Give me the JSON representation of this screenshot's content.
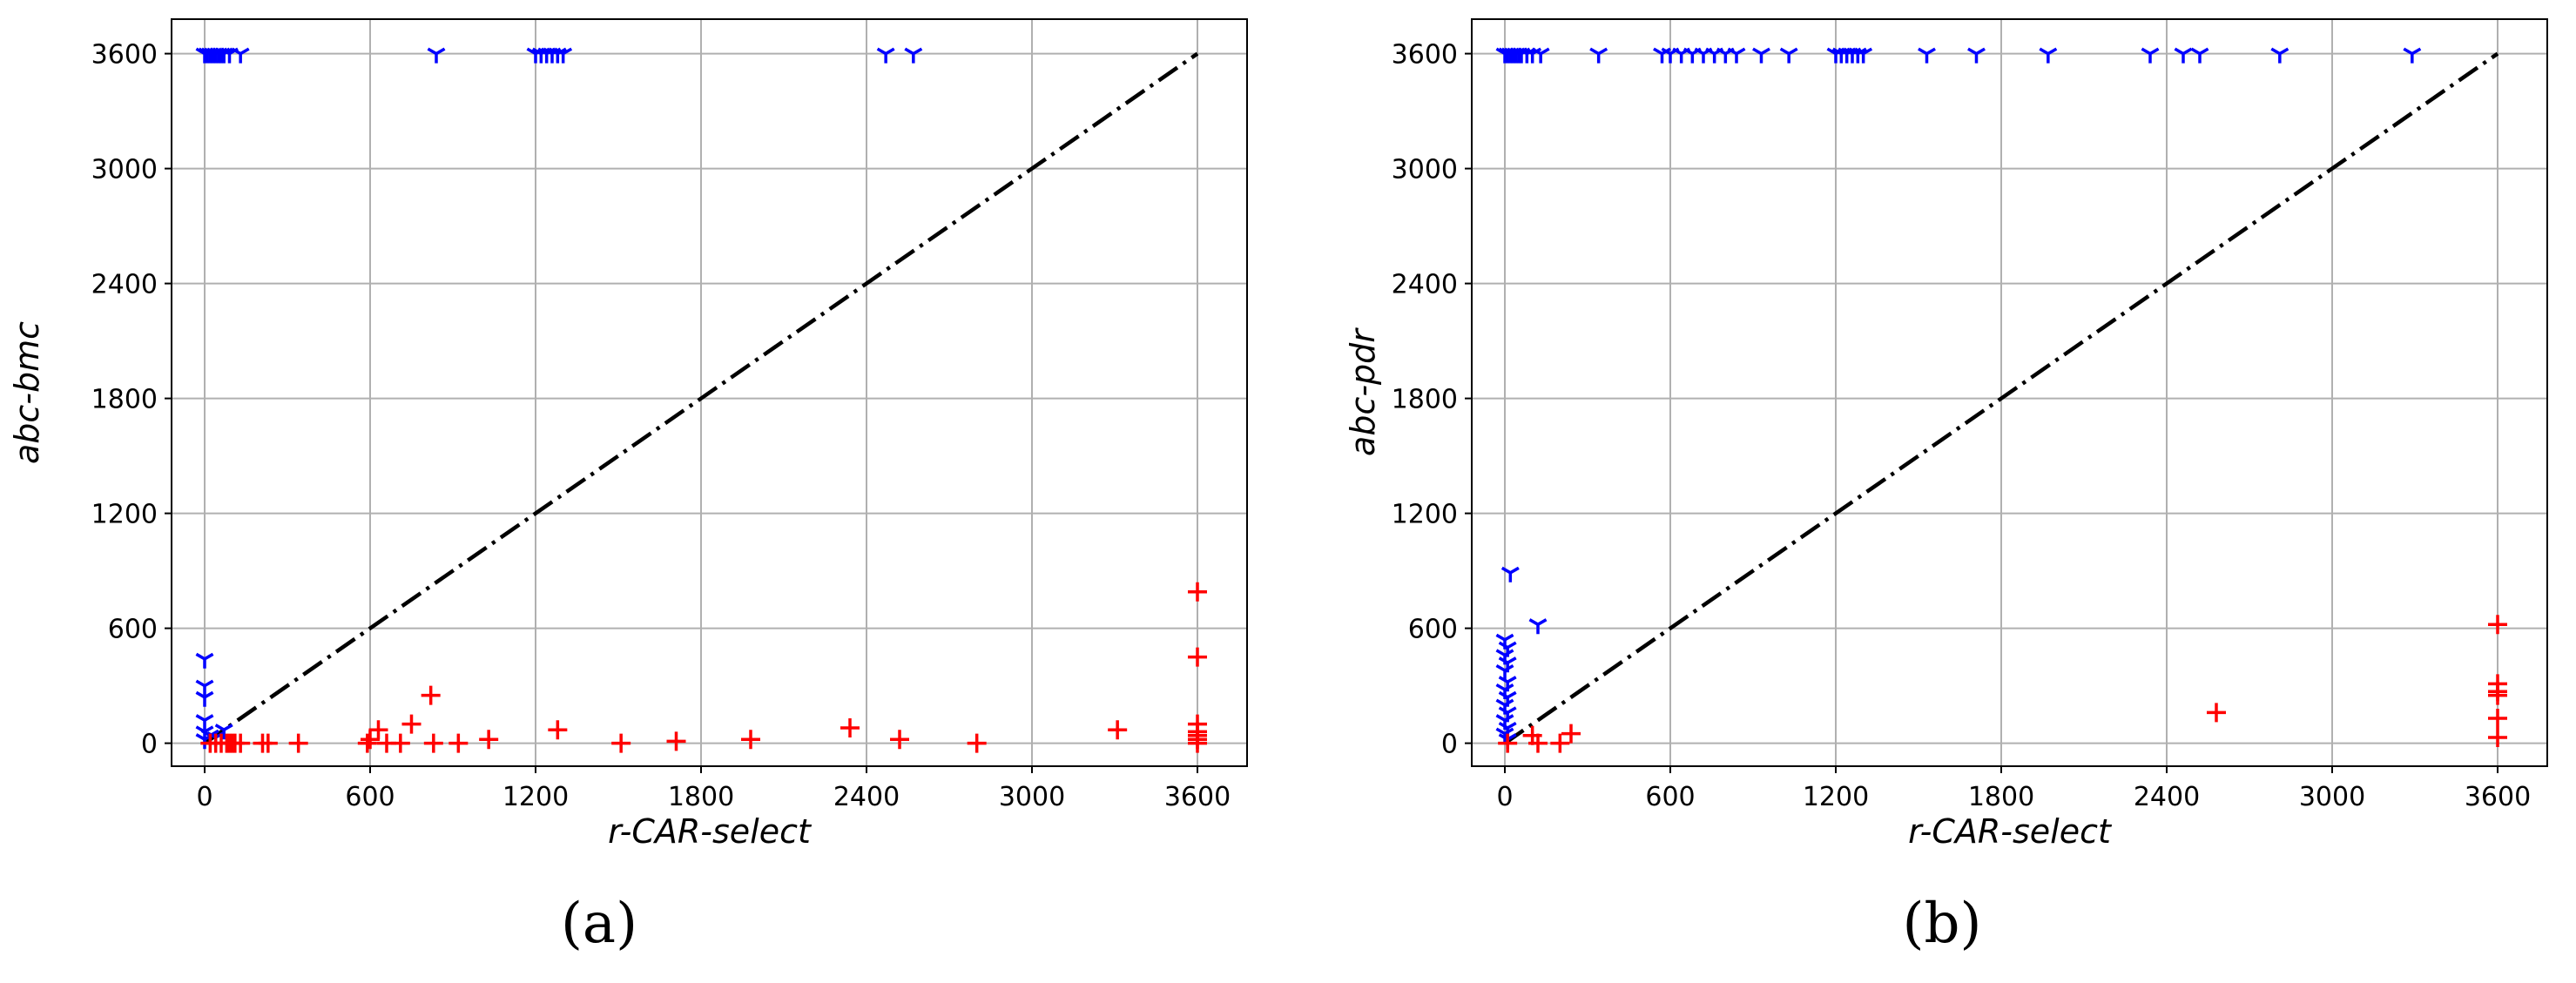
{
  "chart_data": [
    {
      "type": "scatter",
      "panel_label": "(a)",
      "xlabel": "r-CAR-select",
      "ylabel": "abc-bmc",
      "xlim": [
        -120,
        3780
      ],
      "ylim": [
        -120,
        3780
      ],
      "xticks": [
        0,
        600,
        1200,
        1800,
        2400,
        3000,
        3600
      ],
      "yticks": [
        0,
        600,
        1200,
        1800,
        2400,
        3000,
        3600
      ],
      "grid": true,
      "reference_line": [
        [
          0,
          0
        ],
        [
          3600,
          3600
        ]
      ],
      "series": [
        {
          "marker": "tri_down",
          "color": "#0000ff",
          "points": [
            [
              0,
              3600
            ],
            [
              10,
              3600
            ],
            [
              20,
              3600
            ],
            [
              30,
              3600
            ],
            [
              40,
              3600
            ],
            [
              50,
              3600
            ],
            [
              60,
              3600
            ],
            [
              70,
              3600
            ],
            [
              90,
              3600
            ],
            [
              130,
              3600
            ],
            [
              840,
              3600
            ],
            [
              1200,
              3600
            ],
            [
              1220,
              3600
            ],
            [
              1240,
              3600
            ],
            [
              1260,
              3600
            ],
            [
              1280,
              3600
            ],
            [
              1300,
              3600
            ],
            [
              2470,
              3600
            ],
            [
              2570,
              3600
            ],
            [
              0,
              440
            ],
            [
              0,
              300
            ],
            [
              0,
              240
            ],
            [
              0,
              120
            ],
            [
              0,
              60
            ],
            [
              0,
              20
            ],
            [
              20,
              40
            ],
            [
              40,
              30
            ],
            [
              70,
              70
            ]
          ]
        },
        {
          "marker": "plus",
          "color": "#ff0000",
          "points": [
            [
              20,
              0
            ],
            [
              40,
              0
            ],
            [
              60,
              0
            ],
            [
              80,
              0
            ],
            [
              90,
              0
            ],
            [
              100,
              0
            ],
            [
              110,
              0
            ],
            [
              130,
              0
            ],
            [
              210,
              0
            ],
            [
              230,
              0
            ],
            [
              340,
              0
            ],
            [
              590,
              0
            ],
            [
              600,
              20
            ],
            [
              630,
              70
            ],
            [
              660,
              0
            ],
            [
              710,
              0
            ],
            [
              750,
              100
            ],
            [
              820,
              250
            ],
            [
              830,
              0
            ],
            [
              920,
              0
            ],
            [
              1030,
              20
            ],
            [
              1280,
              70
            ],
            [
              1510,
              0
            ],
            [
              1710,
              10
            ],
            [
              1980,
              20
            ],
            [
              2340,
              80
            ],
            [
              2520,
              20
            ],
            [
              2800,
              0
            ],
            [
              3310,
              70
            ],
            [
              3600,
              790
            ],
            [
              3600,
              450
            ],
            [
              3600,
              100
            ],
            [
              3600,
              60
            ],
            [
              3600,
              40
            ],
            [
              3600,
              20
            ],
            [
              3600,
              0
            ]
          ]
        }
      ]
    },
    {
      "type": "scatter",
      "panel_label": "(b)",
      "xlabel": "r-CAR-select",
      "ylabel": "abc-pdr",
      "xlim": [
        -120,
        3780
      ],
      "ylim": [
        -120,
        3780
      ],
      "xticks": [
        0,
        600,
        1200,
        1800,
        2400,
        3000,
        3600
      ],
      "yticks": [
        0,
        600,
        1200,
        1800,
        2400,
        3000,
        3600
      ],
      "grid": true,
      "reference_line": [
        [
          0,
          0
        ],
        [
          3600,
          3600
        ]
      ],
      "series": [
        {
          "marker": "tri_down",
          "color": "#0000ff",
          "points": [
            [
              0,
              3600
            ],
            [
              10,
              3600
            ],
            [
              20,
              3600
            ],
            [
              30,
              3600
            ],
            [
              40,
              3600
            ],
            [
              50,
              3600
            ],
            [
              60,
              3600
            ],
            [
              80,
              3600
            ],
            [
              100,
              3600
            ],
            [
              130,
              3600
            ],
            [
              340,
              3600
            ],
            [
              570,
              3600
            ],
            [
              600,
              3600
            ],
            [
              640,
              3600
            ],
            [
              680,
              3600
            ],
            [
              720,
              3600
            ],
            [
              760,
              3600
            ],
            [
              800,
              3600
            ],
            [
              840,
              3600
            ],
            [
              930,
              3600
            ],
            [
              1030,
              3600
            ],
            [
              1200,
              3600
            ],
            [
              1220,
              3600
            ],
            [
              1240,
              3600
            ],
            [
              1260,
              3600
            ],
            [
              1280,
              3600
            ],
            [
              1300,
              3600
            ],
            [
              1530,
              3600
            ],
            [
              1710,
              3600
            ],
            [
              1970,
              3600
            ],
            [
              2340,
              3600
            ],
            [
              2460,
              3600
            ],
            [
              2520,
              3600
            ],
            [
              2810,
              3600
            ],
            [
              3290,
              3600
            ],
            [
              20,
              890
            ],
            [
              120,
              620
            ],
            [
              0,
              540
            ],
            [
              10,
              500
            ],
            [
              0,
              460
            ],
            [
              10,
              420
            ],
            [
              0,
              380
            ],
            [
              10,
              320
            ],
            [
              0,
              280
            ],
            [
              10,
              240
            ],
            [
              0,
              200
            ],
            [
              10,
              160
            ],
            [
              0,
              120
            ],
            [
              10,
              80
            ],
            [
              0,
              50
            ],
            [
              10,
              20
            ]
          ]
        },
        {
          "marker": "plus",
          "color": "#ff0000",
          "points": [
            [
              10,
              0
            ],
            [
              100,
              40
            ],
            [
              120,
              0
            ],
            [
              200,
              0
            ],
            [
              240,
              50
            ],
            [
              2580,
              160
            ],
            [
              3600,
              620
            ],
            [
              3600,
              310
            ],
            [
              3600,
              270
            ],
            [
              3600,
              250
            ],
            [
              3600,
              130
            ],
            [
              3600,
              30
            ]
          ]
        }
      ]
    }
  ]
}
